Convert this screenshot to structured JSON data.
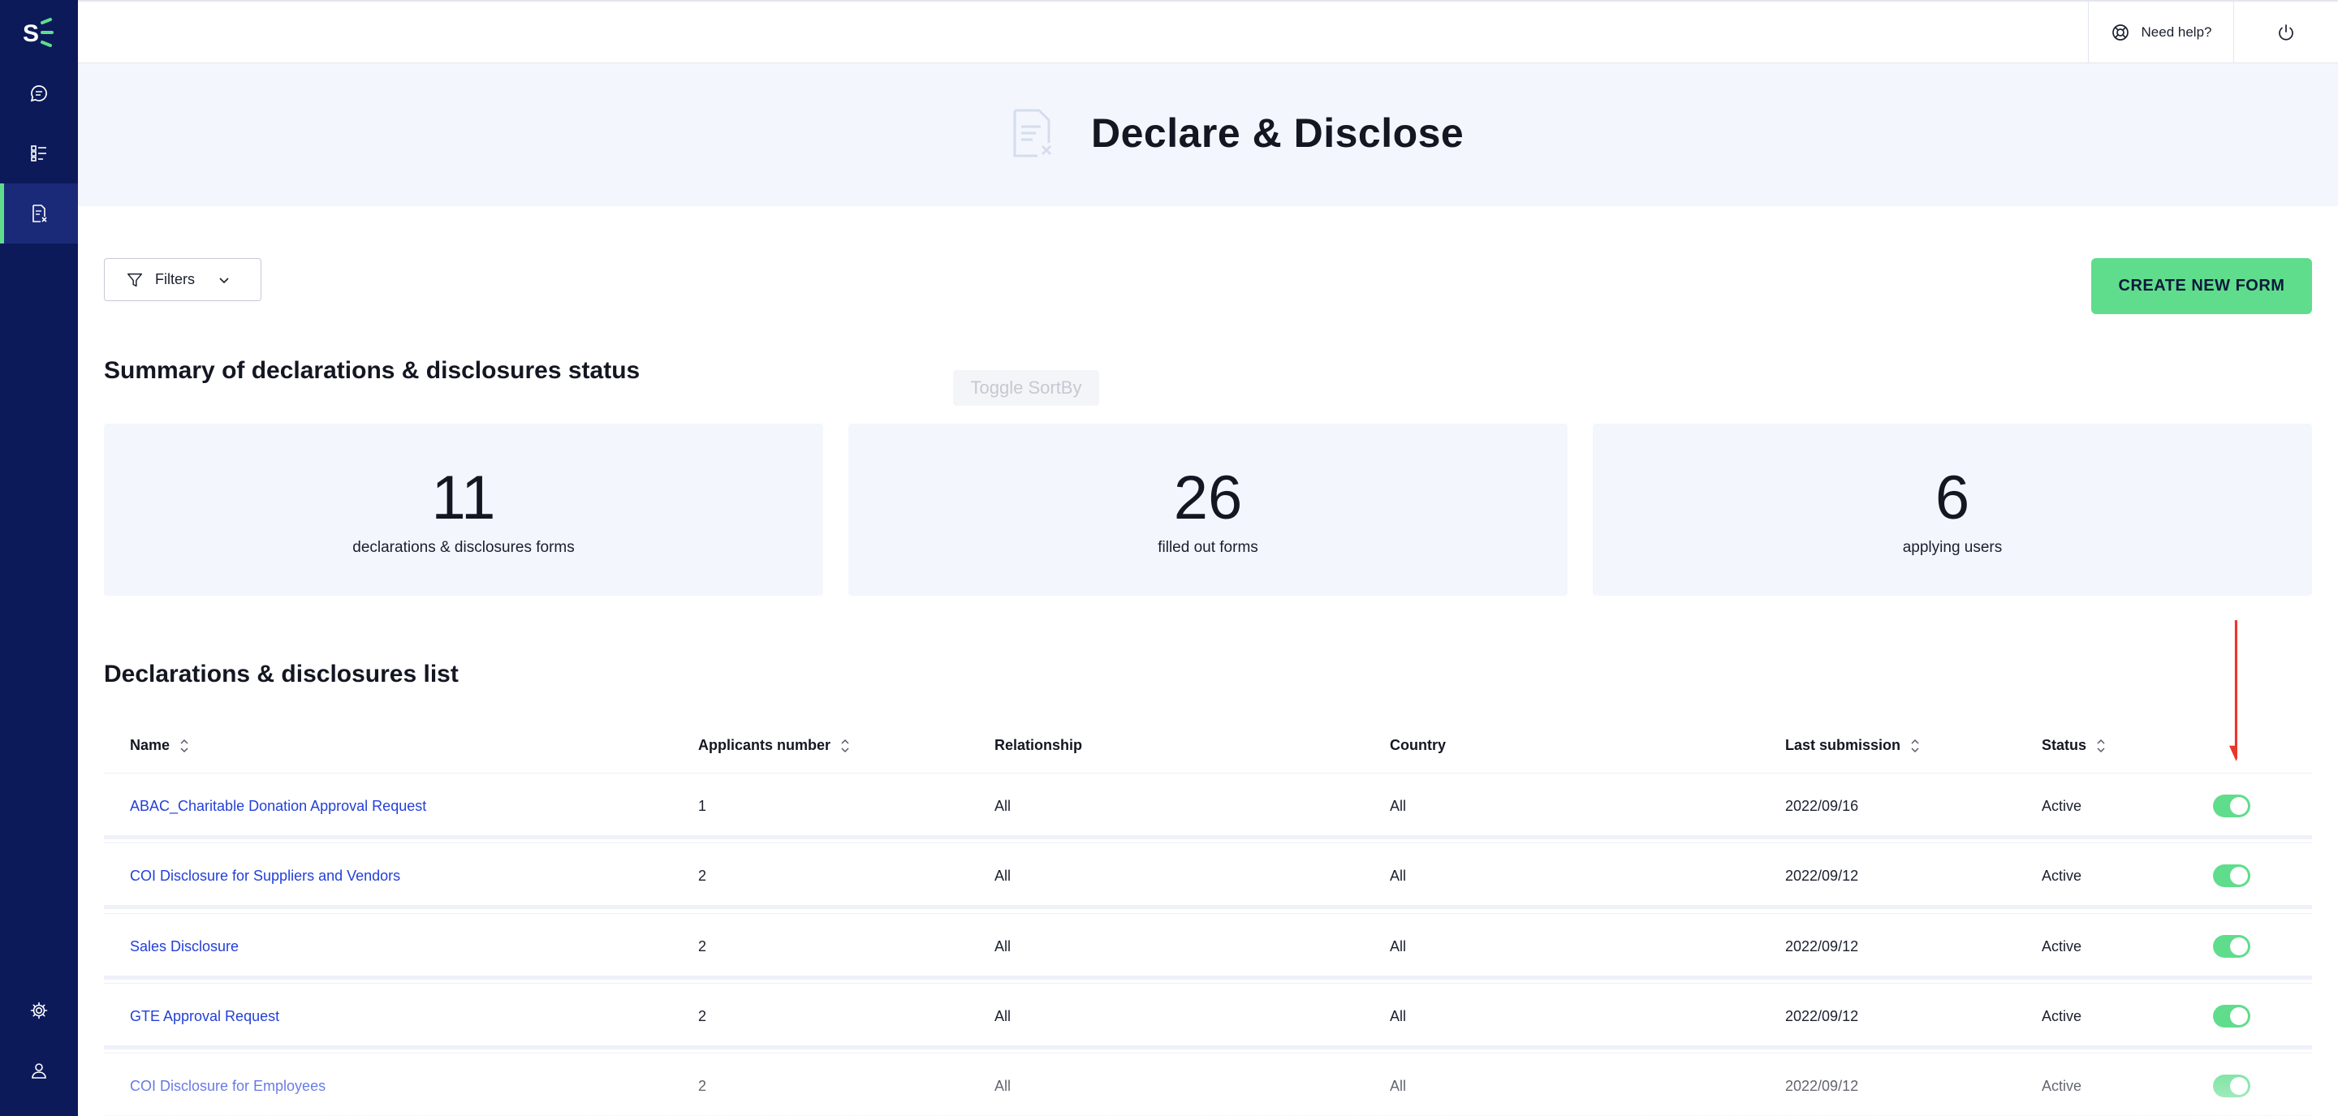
{
  "app": {
    "logo_text": "S",
    "brand_color": "#0c1a5a",
    "accent_color": "#5fdd8c"
  },
  "sidebar": {
    "items": [
      {
        "icon": "chat-icon"
      },
      {
        "icon": "checklist-icon"
      },
      {
        "icon": "document-x-icon",
        "active": true
      }
    ],
    "bottom": [
      {
        "icon": "gear-icon"
      },
      {
        "icon": "user-icon"
      }
    ]
  },
  "header": {
    "help_label": "Need help?",
    "help_icon": "lifebuoy-icon",
    "power_icon": "power-icon"
  },
  "hero": {
    "title": "Declare & Disclose",
    "icon": "document-x-icon"
  },
  "toolbar": {
    "filters_label": "Filters",
    "create_label": "CREATE NEW FORM"
  },
  "tooltip": "Toggle SortBy",
  "summary": {
    "title": "Summary of declarations & disclosures status",
    "cards": [
      {
        "value": "11",
        "label": "declarations & disclosures forms"
      },
      {
        "value": "26",
        "label": "filled out forms"
      },
      {
        "value": "6",
        "label": "applying users"
      }
    ]
  },
  "list": {
    "title": "Declarations & disclosures list",
    "columns": [
      "Name",
      "Applicants number",
      "Relationship",
      "Country",
      "Last submission",
      "Status"
    ],
    "rows": [
      {
        "name": "ABAC_Charitable Donation Approval Request",
        "applicants": "1",
        "relationship": "All",
        "country": "All",
        "last_submission": "2022/09/16",
        "status": "Active",
        "enabled": true
      },
      {
        "name": "COI Disclosure for Suppliers and Vendors",
        "applicants": "2",
        "relationship": "All",
        "country": "All",
        "last_submission": "2022/09/12",
        "status": "Active",
        "enabled": true
      },
      {
        "name": "Sales Disclosure",
        "applicants": "2",
        "relationship": "All",
        "country": "All",
        "last_submission": "2022/09/12",
        "status": "Active",
        "enabled": true
      },
      {
        "name": "GTE Approval Request",
        "applicants": "2",
        "relationship": "All",
        "country": "All",
        "last_submission": "2022/09/12",
        "status": "Active",
        "enabled": true
      },
      {
        "name": "COI Disclosure for Employees",
        "applicants": "2",
        "relationship": "All",
        "country": "All",
        "last_submission": "2022/09/12",
        "status": "Active",
        "enabled": true
      }
    ]
  }
}
